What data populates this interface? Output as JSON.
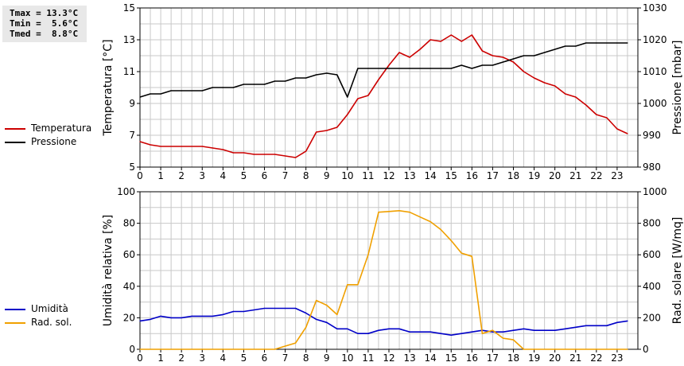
{
  "stats": {
    "tmax": "Tmax = 13.3°C",
    "tmin": "Tmin =  5.6°C",
    "tmed": "Tmed =  8.8°C"
  },
  "colors": {
    "temperatura": "#cc0000",
    "pressione": "#000000",
    "umidita": "#0000c8",
    "radiazione": "#f0a000",
    "grid": "#c8c8c8"
  },
  "chart_data": [
    {
      "type": "line",
      "x_ticks": [
        "0",
        "1",
        "2",
        "3",
        "4",
        "5",
        "6",
        "7",
        "8",
        "9",
        "10",
        "11",
        "12",
        "13",
        "14",
        "15",
        "16",
        "17",
        "18",
        "19",
        "20",
        "21",
        "22",
        "23"
      ],
      "xlim": [
        0,
        24
      ],
      "ylabel_left": "Temperatura [°C]",
      "ylabel_right": "Pressione [mbar]",
      "ylim_left": [
        5,
        15
      ],
      "ylim_right": [
        980,
        1030
      ],
      "yticks_left": [
        "5",
        "7",
        "9",
        "11",
        "13",
        "15"
      ],
      "yticks_right": [
        "980",
        "990",
        "1000",
        "1010",
        "1020",
        "1030"
      ],
      "grid": true,
      "legend": [
        "Temperatura",
        "Pressione"
      ],
      "series": [
        {
          "name": "Temperatura",
          "axis": "left",
          "points": [
            [
              0,
              6.6
            ],
            [
              0.5,
              6.4
            ],
            [
              1,
              6.3
            ],
            [
              2,
              6.3
            ],
            [
              3,
              6.3
            ],
            [
              3.5,
              6.2
            ],
            [
              4,
              6.1
            ],
            [
              4.5,
              5.9
            ],
            [
              5,
              5.9
            ],
            [
              5.5,
              5.8
            ],
            [
              6,
              5.8
            ],
            [
              6.5,
              5.8
            ],
            [
              7,
              5.7
            ],
            [
              7.5,
              5.6
            ],
            [
              8,
              6.0
            ],
            [
              8.5,
              7.2
            ],
            [
              9,
              7.3
            ],
            [
              9.5,
              7.5
            ],
            [
              10,
              8.3
            ],
            [
              10.5,
              9.3
            ],
            [
              11,
              9.5
            ],
            [
              11.5,
              10.5
            ],
            [
              12,
              11.4
            ],
            [
              12.5,
              12.2
            ],
            [
              13,
              11.9
            ],
            [
              13.5,
              12.4
            ],
            [
              14,
              13.0
            ],
            [
              14.5,
              12.9
            ],
            [
              15,
              13.3
            ],
            [
              15.5,
              12.9
            ],
            [
              16,
              13.3
            ],
            [
              16.5,
              12.3
            ],
            [
              17,
              12.0
            ],
            [
              17.5,
              11.9
            ],
            [
              18,
              11.6
            ],
            [
              18.5,
              11.0
            ],
            [
              19,
              10.6
            ],
            [
              19.5,
              10.3
            ],
            [
              20,
              10.1
            ],
            [
              20.5,
              9.6
            ],
            [
              21,
              9.4
            ],
            [
              21.5,
              8.9
            ],
            [
              22,
              8.3
            ],
            [
              22.5,
              8.1
            ],
            [
              23,
              7.4
            ],
            [
              23.5,
              7.1
            ]
          ]
        },
        {
          "name": "Pressione",
          "axis": "right",
          "points": [
            [
              0,
              1002
            ],
            [
              0.5,
              1003
            ],
            [
              1,
              1003
            ],
            [
              1.5,
              1004
            ],
            [
              2,
              1004
            ],
            [
              3,
              1004
            ],
            [
              3.5,
              1005
            ],
            [
              4,
              1005
            ],
            [
              4.5,
              1005
            ],
            [
              5,
              1006
            ],
            [
              5.5,
              1006
            ],
            [
              6,
              1006
            ],
            [
              6.5,
              1007
            ],
            [
              7,
              1007
            ],
            [
              7.5,
              1008
            ],
            [
              8,
              1008
            ],
            [
              8.5,
              1009
            ],
            [
              9,
              1009.5
            ],
            [
              9.5,
              1009
            ],
            [
              10,
              1002
            ],
            [
              10.5,
              1011
            ],
            [
              11,
              1011
            ],
            [
              12,
              1011
            ],
            [
              13,
              1011
            ],
            [
              14,
              1011
            ],
            [
              15,
              1011
            ],
            [
              15.5,
              1012
            ],
            [
              16,
              1011
            ],
            [
              16.5,
              1012
            ],
            [
              17,
              1012
            ],
            [
              17.5,
              1013
            ],
            [
              18,
              1014
            ],
            [
              18.5,
              1015
            ],
            [
              19,
              1015
            ],
            [
              19.5,
              1016
            ],
            [
              20,
              1017
            ],
            [
              20.5,
              1018
            ],
            [
              21,
              1018
            ],
            [
              21.5,
              1019
            ],
            [
              22,
              1019
            ],
            [
              23,
              1019
            ],
            [
              23.5,
              1019
            ]
          ]
        }
      ]
    },
    {
      "type": "line",
      "x_ticks": [
        "0",
        "1",
        "2",
        "3",
        "4",
        "5",
        "6",
        "7",
        "8",
        "9",
        "10",
        "11",
        "12",
        "13",
        "14",
        "15",
        "16",
        "17",
        "18",
        "19",
        "20",
        "21",
        "22",
        "23"
      ],
      "xlim": [
        0,
        24
      ],
      "ylabel_left": "Umidità relativa [%]",
      "ylabel_right": "Rad. solare [W/mq]",
      "ylim_left": [
        0,
        100
      ],
      "ylim_right": [
        0,
        1000
      ],
      "yticks_left": [
        "0",
        "20",
        "40",
        "60",
        "80",
        "100"
      ],
      "yticks_right": [
        "0",
        "200",
        "400",
        "600",
        "800",
        "1000"
      ],
      "grid": true,
      "legend": [
        "Umidità",
        "Rad. sol."
      ],
      "series": [
        {
          "name": "Umidità",
          "axis": "left",
          "points": [
            [
              0,
              18
            ],
            [
              0.5,
              19
            ],
            [
              1,
              21
            ],
            [
              1.5,
              20
            ],
            [
              2,
              20
            ],
            [
              2.5,
              21
            ],
            [
              3,
              21
            ],
            [
              3.5,
              21
            ],
            [
              4,
              22
            ],
            [
              4.5,
              24
            ],
            [
              5,
              24
            ],
            [
              5.5,
              25
            ],
            [
              6,
              26
            ],
            [
              6.5,
              26
            ],
            [
              7,
              26
            ],
            [
              7.5,
              26
            ],
            [
              8,
              23
            ],
            [
              8.5,
              19
            ],
            [
              9,
              17
            ],
            [
              9.5,
              13
            ],
            [
              10,
              13
            ],
            [
              10.5,
              10
            ],
            [
              11,
              10
            ],
            [
              11.5,
              12
            ],
            [
              12,
              13
            ],
            [
              12.5,
              13
            ],
            [
              13,
              11
            ],
            [
              13.5,
              11
            ],
            [
              14,
              11
            ],
            [
              14.5,
              10
            ],
            [
              15,
              9
            ],
            [
              15.5,
              10
            ],
            [
              16,
              11
            ],
            [
              16.5,
              12
            ],
            [
              17,
              11
            ],
            [
              17.5,
              11
            ],
            [
              18,
              12
            ],
            [
              18.5,
              13
            ],
            [
              19,
              12
            ],
            [
              19.5,
              12
            ],
            [
              20,
              12
            ],
            [
              20.5,
              13
            ],
            [
              21,
              14
            ],
            [
              21.5,
              15
            ],
            [
              22,
              15
            ],
            [
              22.5,
              15
            ],
            [
              23,
              17
            ],
            [
              23.5,
              18
            ]
          ]
        },
        {
          "name": "Rad. sol.",
          "axis": "right",
          "points": [
            [
              0,
              0
            ],
            [
              1,
              0
            ],
            [
              2,
              0
            ],
            [
              3,
              0
            ],
            [
              4,
              0
            ],
            [
              5,
              0
            ],
            [
              6,
              0
            ],
            [
              6.5,
              0
            ],
            [
              7,
              20
            ],
            [
              7.5,
              40
            ],
            [
              8,
              140
            ],
            [
              8.5,
              310
            ],
            [
              9,
              280
            ],
            [
              9.5,
              220
            ],
            [
              10,
              410
            ],
            [
              10.5,
              410
            ],
            [
              11,
              600
            ],
            [
              11.5,
              870
            ],
            [
              12,
              875
            ],
            [
              12.5,
              880
            ],
            [
              13,
              870
            ],
            [
              13.5,
              840
            ],
            [
              14,
              810
            ],
            [
              14.5,
              760
            ],
            [
              15,
              690
            ],
            [
              15.5,
              610
            ],
            [
              16,
              590
            ],
            [
              16.5,
              100
            ],
            [
              17,
              120
            ],
            [
              17.5,
              70
            ],
            [
              18,
              60
            ],
            [
              18.5,
              0
            ],
            [
              19,
              0
            ],
            [
              20,
              0
            ],
            [
              21,
              0
            ],
            [
              22,
              0
            ],
            [
              23,
              0
            ],
            [
              23.5,
              0
            ]
          ]
        }
      ]
    }
  ]
}
